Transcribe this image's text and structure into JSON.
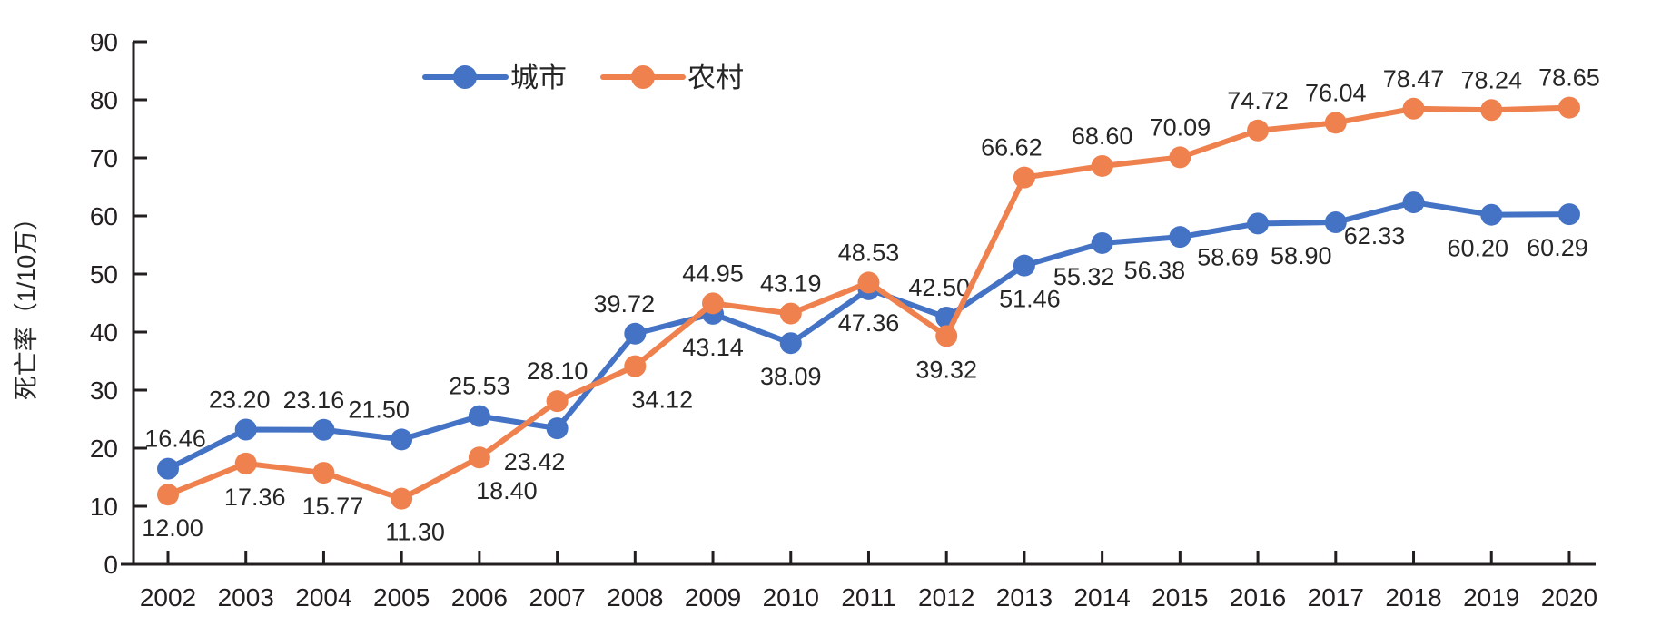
{
  "chart_data": {
    "type": "line",
    "title": "",
    "xlabel": "",
    "ylabel": "死亡率（1/10万）",
    "x": [
      "2002",
      "2003",
      "2004",
      "2005",
      "2006",
      "2007",
      "2008",
      "2009",
      "2010",
      "2011",
      "2012",
      "2013",
      "2014",
      "2015",
      "2016",
      "2017",
      "2018",
      "2019",
      "2020"
    ],
    "ylim": [
      0,
      90
    ],
    "ytick_interval": 10,
    "grid": false,
    "legend_position": "top",
    "value_labels": true,
    "value_label_decimals": 2,
    "series": [
      {
        "key": "urban",
        "name": "城市",
        "color": "#4473C5",
        "values": [
          16.46,
          23.2,
          23.16,
          21.5,
          25.53,
          23.42,
          39.72,
          43.14,
          38.09,
          47.36,
          42.5,
          51.46,
          55.32,
          56.38,
          58.69,
          58.9,
          62.33,
          60.2,
          60.29
        ],
        "label_side": [
          "above",
          "above",
          "above",
          "above",
          "above",
          "below",
          "above",
          "below",
          "below",
          "below",
          "above",
          "below",
          "below",
          "below",
          "below",
          "below",
          "below",
          "below",
          "below"
        ],
        "label_dx": [
          8,
          -7,
          -11,
          -25,
          0,
          -25,
          -12,
          0,
          0,
          0,
          -8,
          6,
          -20,
          -28,
          -33,
          -38,
          -43,
          -15,
          -13
        ]
      },
      {
        "key": "rural",
        "name": "农村",
        "color": "#EF814E",
        "values": [
          12.0,
          17.36,
          15.77,
          11.3,
          18.4,
          28.1,
          34.12,
          44.95,
          43.19,
          48.53,
          39.32,
          66.62,
          68.6,
          70.09,
          74.72,
          76.04,
          78.47,
          78.24,
          78.65
        ],
        "label_side": [
          "below",
          "below",
          "below",
          "below",
          "below",
          "above",
          "below",
          "above",
          "above",
          "above",
          "below",
          "above",
          "above",
          "above",
          "above",
          "above",
          "above",
          "above",
          "above"
        ],
        "label_dx": [
          5,
          10,
          10,
          15,
          30,
          0,
          30,
          0,
          0,
          0,
          0,
          -14,
          0,
          0,
          0,
          0,
          0,
          0,
          0
        ]
      }
    ]
  }
}
